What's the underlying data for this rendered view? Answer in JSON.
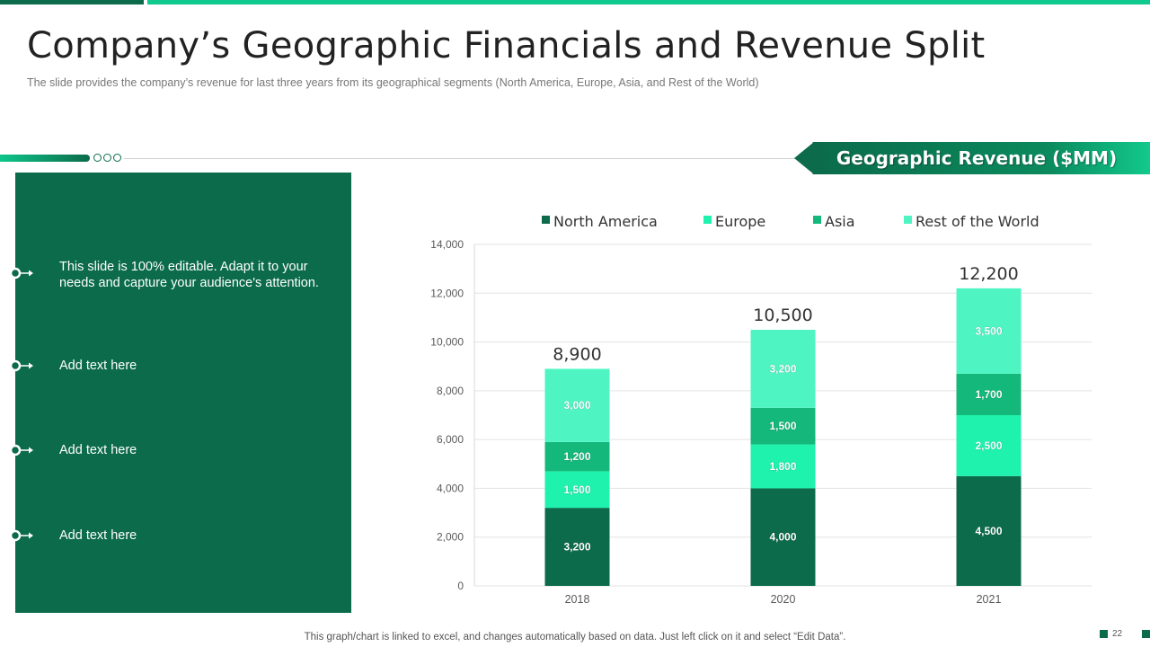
{
  "slide": {
    "title": "Company’s Geographic Financials and Revenue Split",
    "subtitle": "The slide provides  the company’s revenue  for last three years from its geographical  segments (North  America, Europe, Asia, and Rest of the World)",
    "banner": "Geographic Revenue ($MM)",
    "footnote": "This graph/chart is linked to excel,  and changes automatically based on data. Just left click on it and select “Edit Data”.",
    "page_number": "22"
  },
  "panel": {
    "bullets": [
      {
        "text": "This slide is 100% editable. Adapt it to your needs and capture your audience's attention."
      },
      {
        "text": "Add text here"
      },
      {
        "text": "Add text here"
      },
      {
        "text": "Add text here"
      }
    ]
  },
  "colors": {
    "dark_green": "#0b6b4a",
    "bright_green": "#10c98c",
    "north_america": "#0b6b4a",
    "europe": "#1ef2ac",
    "asia": "#13b87a",
    "rest_of_world": "#4ef5c2"
  },
  "chart_data": {
    "type": "bar",
    "stacked": true,
    "categories": [
      "2018",
      "2020",
      "2021"
    ],
    "series": [
      {
        "name": "North America",
        "values": [
          3200,
          4000,
          4500
        ],
        "color": "#0b6b4a"
      },
      {
        "name": "Europe",
        "values": [
          1500,
          1800,
          2500
        ],
        "color": "#1ef2ac"
      },
      {
        "name": "Asia",
        "values": [
          1200,
          1500,
          1700
        ],
        "color": "#13b87a"
      },
      {
        "name": "Rest of the World",
        "values": [
          3000,
          3200,
          3500
        ],
        "color": "#4ef5c2"
      }
    ],
    "segment_labels": [
      [
        "3,200",
        "4,000",
        "4,500"
      ],
      [
        "1,500",
        "1,800",
        "2,500"
      ],
      [
        "1,200",
        "1,500",
        "1,700"
      ],
      [
        "3,000",
        "3,200",
        "3,500"
      ]
    ],
    "totals": [
      8900,
      10500,
      12200
    ],
    "total_labels": [
      "8,900",
      "10,500",
      "12,200"
    ],
    "yticks": [
      0,
      2000,
      4000,
      6000,
      8000,
      10000,
      12000,
      14000
    ],
    "ytick_labels": [
      "0",
      "2,000",
      "4,000",
      "6,000",
      "8,000",
      "10,000",
      "12,000",
      "14,000"
    ],
    "ylim": [
      0,
      14000
    ],
    "legend_position": "top",
    "grid": true,
    "title": "",
    "xlabel": "",
    "ylabel": ""
  }
}
